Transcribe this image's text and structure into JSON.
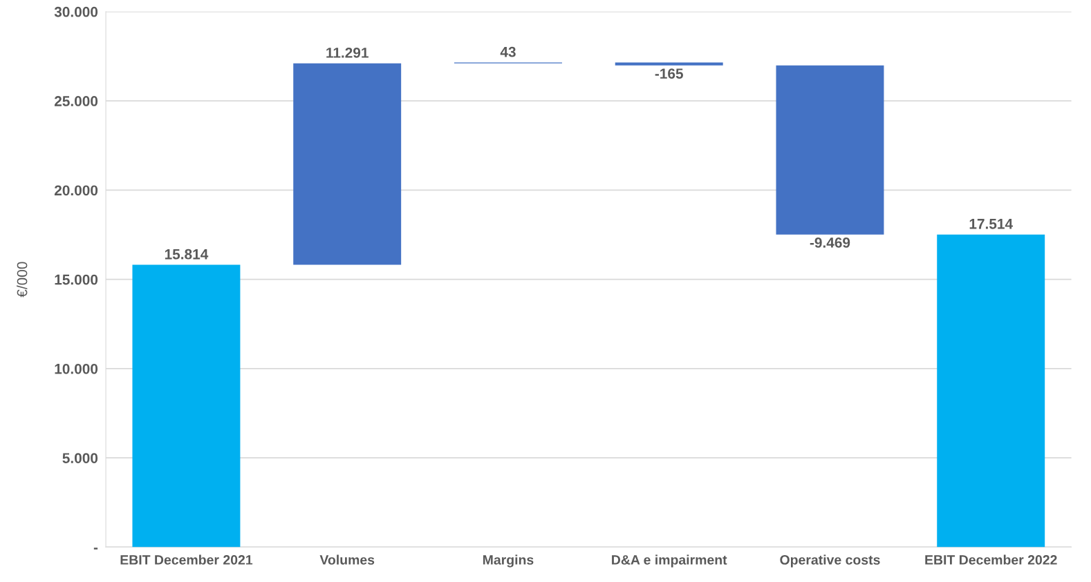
{
  "chart_data": {
    "type": "bar",
    "ylabel": "€/000",
    "categories": [
      "EBIT December 2021",
      "Volumes",
      "Margins",
      "D&A e impairment",
      "Operative costs",
      "EBIT December 2022"
    ],
    "values": [
      15814,
      11291,
      43,
      -165,
      -9469,
      17514
    ],
    "base": [
      0,
      15814,
      27105,
      27148,
      26983,
      0
    ],
    "colors": [
      "#00b0f0",
      "#4472c4",
      "#4472c4",
      "#4472c4",
      "#4472c4",
      "#00b0f0"
    ],
    "value_labels": [
      "15.814",
      "11.291",
      "43",
      "-165",
      "-9.469",
      "17.514"
    ],
    "ylim": [
      0,
      30000
    ],
    "yticks": [
      {
        "value": 0,
        "label": "-"
      },
      {
        "value": 5000,
        "label": "5.000"
      },
      {
        "value": 10000,
        "label": "10.000"
      },
      {
        "value": 15000,
        "label": "15.000"
      },
      {
        "value": 20000,
        "label": "20.000"
      },
      {
        "value": 25000,
        "label": "25.000"
      },
      {
        "value": 30000,
        "label": "30.000"
      }
    ],
    "grid": "y",
    "legend": false
  }
}
